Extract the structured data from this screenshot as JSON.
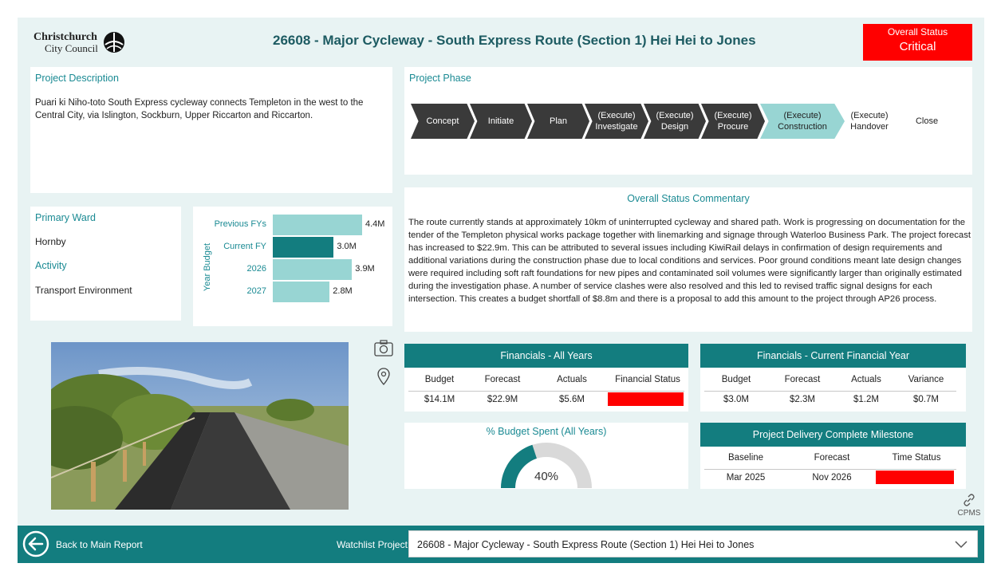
{
  "header": {
    "logo_line1": "Christchurch",
    "logo_line2": "City Council",
    "title": "26608 - Major Cycleway - South Express Route (Section 1) Hei Hei to Jones",
    "overall_status_label": "Overall Status",
    "overall_status_value": "Critical",
    "status_color": "#ff0000"
  },
  "description": {
    "title": "Project Description",
    "text": "Puari ki Niho-toto South Express cycleway connects Templeton in the west to the Central City, via Islington, Sockburn, Upper Riccarton and Riccarton."
  },
  "phase": {
    "title": "Project Phase",
    "steps": [
      {
        "line1": "Concept",
        "line2": ""
      },
      {
        "line1": "Initiate",
        "line2": ""
      },
      {
        "line1": "Plan",
        "line2": ""
      },
      {
        "line1": "(Execute)",
        "line2": "Investigate"
      },
      {
        "line1": "(Execute)",
        "line2": "Design"
      },
      {
        "line1": "(Execute)",
        "line2": "Procure"
      },
      {
        "line1": "(Execute)",
        "line2": "Construction"
      },
      {
        "line1": "(Execute)",
        "line2": "Handover"
      },
      {
        "line1": "Close",
        "line2": ""
      }
    ],
    "current_step": "(Execute) Construction"
  },
  "ward": {
    "ward_label": "Primary Ward",
    "ward_value": "Hornby",
    "activity_label": "Activity",
    "activity_value": "Transport Environment"
  },
  "chart_data": {
    "type": "bar",
    "orientation": "horizontal",
    "ylabel": "Year Budget",
    "categories": [
      "Previous FYs",
      "Current FY",
      "2026",
      "2027"
    ],
    "values": [
      4.4,
      3.0,
      3.9,
      2.8
    ],
    "value_labels": [
      "4.4M",
      "3.0M",
      "3.9M",
      "2.8M"
    ],
    "highlight": "Current FY",
    "colors": {
      "bar": "#98d5d3",
      "highlight": "#137d7f"
    }
  },
  "commentary": {
    "title": "Overall Status Commentary",
    "text": "The route currently stands at approximately 10km of uninterrupted cycleway and shared path. Work is progressing on documentation for the tender of the Templeton physical works package together with linemarking and signage through Waterloo Business Park. The project forecast has increased to $22.9m. This can be attributed to several issues including KiwiRail delays in confirmation of design requirements and additional variations during the construction phase due to local conditions and services. Poor ground conditions meant late design changes were required including soft raft foundations for new pipes and contaminated soil volumes were significantly larger than originally estimated during the investigation phase. A number of service clashes were also resolved and this led to revised traffic signal designs for each intersection. This creates a budget shortfall of $8.8m and there is a proposal to add this amount to the project through AP26 process."
  },
  "icons": {
    "camera": "camera-icon",
    "location": "location-pin-icon",
    "link": "link-icon",
    "back": "back-arrow-icon",
    "dropdown": "chevron-down-icon"
  },
  "fin_all": {
    "title": "Financials - All Years",
    "headers": [
      "Budget",
      "Forecast",
      "Actuals",
      "Financial Status"
    ],
    "values": [
      "$14.1M",
      "$22.9M",
      "$5.6M"
    ],
    "status_color": "#ff0000"
  },
  "fin_current": {
    "title": "Financials - Current Financial Year",
    "headers": [
      "Budget",
      "Forecast",
      "Actuals",
      "Variance"
    ],
    "values": [
      "$3.0M",
      "$2.3M",
      "$1.2M",
      "$0.7M"
    ]
  },
  "budget_spent": {
    "title": "% Budget Spent (All Years)",
    "percent": 40,
    "label": "40%"
  },
  "milestone": {
    "title": "Project Delivery Complete Milestone",
    "headers": [
      "Baseline",
      "Forecast",
      "Time Status"
    ],
    "values": [
      "Mar 2025",
      "Nov 2026"
    ],
    "status_color": "#ff0000"
  },
  "cpms_label": "CPMS",
  "footer": {
    "back_label": "Back to Main Report",
    "watchlist_label": "Watchlist Project:",
    "selected_project": "26608 - Major Cycleway - South Express Route (Section 1) Hei Hei to Jones"
  }
}
